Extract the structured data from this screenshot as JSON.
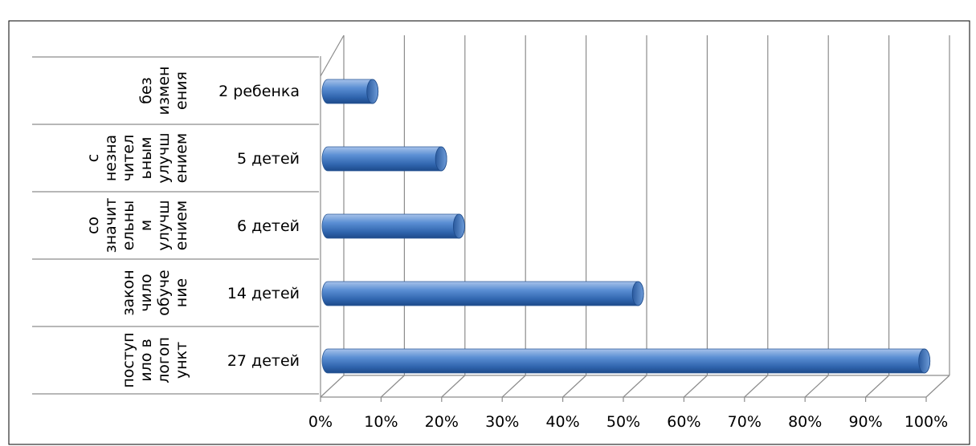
{
  "chart_data": {
    "type": "bar",
    "orientation": "horizontal",
    "style": "3d-cylinder",
    "title": "",
    "categories": [
      {
        "lines": [
          "поступ",
          "ило в",
          "логоп",
          "ункт"
        ],
        "count_label": "27 детей"
      },
      {
        "lines": [
          "закон",
          "чило",
          "обуче",
          "ние"
        ],
        "count_label": "14 детей"
      },
      {
        "lines": [
          "со",
          "значит",
          "ельны",
          "м",
          "улучш",
          "ением"
        ],
        "count_label": "6 детей"
      },
      {
        "lines": [
          "с",
          "незна",
          "чител",
          "ьным",
          "улучш",
          "ением"
        ],
        "count_label": "5 детей"
      },
      {
        "lines": [
          "без",
          "измен",
          "ения"
        ],
        "count_label": "2 ребенка"
      }
    ],
    "values": [
      100,
      52,
      22,
      19,
      7.5
    ],
    "xlim": [
      0,
      100
    ],
    "xticks": [
      "0%",
      "10%",
      "20%",
      "30%",
      "40%",
      "50%",
      "60%",
      "70%",
      "80%",
      "90%",
      "100%"
    ],
    "grid": true,
    "legend": "none",
    "bar_color": "#4f81bd"
  }
}
